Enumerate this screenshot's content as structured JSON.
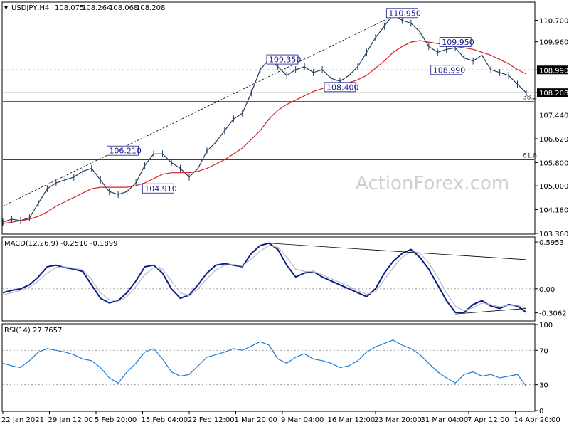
{
  "watermark": "ActionForex.com",
  "chart_data": [
    {
      "type": "line",
      "panel": "price",
      "title": "USDJPY,H4",
      "ohlc": {
        "open": "108.075",
        "high": "108.264",
        "low": "108.068",
        "close": "108.208"
      },
      "ylim": [
        103.36,
        111.3
      ],
      "y_ticks": [
        "110.700",
        "109.960",
        "108.990",
        "108.208",
        "107.440",
        "106.620",
        "105.800",
        "105.000",
        "104.180",
        "103.360"
      ],
      "x_ticks": [
        "22 Jan 2021",
        "29 Jan 12:00",
        "5 Feb 20:00",
        "15 Feb 04:00",
        "22 Feb 12:00",
        "1 Mar 20:00",
        "9 Mar 04:00",
        "16 Mar 12:00",
        "23 Mar 20:00",
        "31 Mar 04:00",
        "7 Apr 12:00",
        "14 Apr 20:00"
      ],
      "x": [
        0,
        2,
        4,
        6,
        8,
        10,
        12,
        14,
        16,
        18,
        20,
        22,
        24,
        26,
        28,
        30,
        32,
        34,
        36,
        38,
        40,
        42,
        44,
        46,
        48,
        50,
        52,
        54,
        56,
        58,
        60,
        62,
        64,
        66,
        68,
        70,
        72,
        74,
        76,
        78,
        80,
        82,
        84,
        86,
        88,
        90,
        92,
        94,
        96,
        98,
        100,
        102,
        104,
        106,
        108,
        110,
        112,
        114,
        116,
        118
      ],
      "series": [
        {
          "color": "#1f3b5a",
          "values": [
            103.75,
            103.85,
            103.8,
            103.9,
            104.4,
            104.9,
            105.1,
            105.2,
            105.3,
            105.5,
            105.6,
            105.2,
            104.8,
            104.7,
            104.8,
            105.1,
            105.7,
            106.1,
            106.1,
            105.8,
            105.6,
            105.3,
            105.6,
            106.2,
            106.5,
            106.9,
            107.3,
            107.5,
            108.2,
            109.0,
            109.35,
            109.1,
            108.8,
            109.0,
            109.1,
            108.9,
            109.0,
            108.7,
            108.6,
            108.8,
            109.1,
            109.6,
            110.1,
            110.5,
            110.9,
            110.7,
            110.6,
            110.3,
            109.8,
            109.6,
            109.7,
            109.75,
            109.4,
            109.3,
            109.5,
            109.0,
            108.9,
            108.8,
            108.5,
            108.2
          ]
        },
        {
          "color": "#d42020",
          "values": [
            103.7,
            103.75,
            103.8,
            103.85,
            103.95,
            104.1,
            104.3,
            104.45,
            104.6,
            104.75,
            104.9,
            104.95,
            104.95,
            104.95,
            104.95,
            105.0,
            105.1,
            105.25,
            105.4,
            105.45,
            105.45,
            105.45,
            105.5,
            105.6,
            105.75,
            105.9,
            106.1,
            106.3,
            106.6,
            106.9,
            107.3,
            107.6,
            107.8,
            107.95,
            108.1,
            108.25,
            108.35,
            108.45,
            108.5,
            108.55,
            108.65,
            108.8,
            109.05,
            109.3,
            109.6,
            109.8,
            109.95,
            110.0,
            109.95,
            109.9,
            109.85,
            109.8,
            109.75,
            109.7,
            109.6,
            109.5,
            109.35,
            109.2,
            109.0,
            108.85
          ]
        }
      ],
      "hlines": [
        108.99,
        108.208,
        107.9,
        105.9
      ],
      "fib_labels": [
        "38.2",
        "61.8"
      ],
      "price_labels": [
        "108.990",
        "108.208"
      ],
      "annotations": [
        {
          "label": "110.950",
          "x": 90,
          "y": 110.95
        },
        {
          "label": "109.350",
          "x": 63,
          "y": 109.35
        },
        {
          "label": "109.950",
          "x": 102,
          "y": 109.95
        },
        {
          "label": "108.990",
          "x": 100,
          "y": 108.99
        },
        {
          "label": "108.400",
          "x": 76,
          "y": 108.4
        },
        {
          "label": "106.210",
          "x": 27,
          "y": 106.21
        },
        {
          "label": "104.910",
          "x": 35,
          "y": 104.91
        }
      ]
    },
    {
      "type": "line",
      "panel": "macd",
      "title": "MACD(12,26,9) -0.2510 -0.1899",
      "ylim": [
        -0.4,
        0.65
      ],
      "y_ticks": [
        "0.5953",
        "0.00",
        "-0.3062"
      ],
      "x": [
        0,
        2,
        4,
        6,
        8,
        10,
        12,
        14,
        16,
        18,
        20,
        22,
        24,
        26,
        28,
        30,
        32,
        34,
        36,
        38,
        40,
        42,
        44,
        46,
        48,
        50,
        52,
        54,
        56,
        58,
        60,
        62,
        64,
        66,
        68,
        70,
        72,
        74,
        76,
        78,
        80,
        82,
        84,
        86,
        88,
        90,
        92,
        94,
        96,
        98,
        100,
        102,
        104,
        106,
        108,
        110,
        112,
        114,
        116,
        118
      ],
      "series": [
        {
          "color": "#0b1f8a",
          "values": [
            -0.05,
            -0.02,
            0.0,
            0.05,
            0.15,
            0.28,
            0.3,
            0.27,
            0.25,
            0.22,
            0.05,
            -0.12,
            -0.18,
            -0.15,
            -0.05,
            0.1,
            0.28,
            0.3,
            0.2,
            0.0,
            -0.12,
            -0.08,
            0.05,
            0.2,
            0.3,
            0.32,
            0.3,
            0.28,
            0.45,
            0.55,
            0.58,
            0.5,
            0.3,
            0.15,
            0.2,
            0.22,
            0.15,
            0.1,
            0.05,
            0.0,
            -0.05,
            -0.1,
            0.0,
            0.2,
            0.35,
            0.45,
            0.5,
            0.4,
            0.25,
            0.05,
            -0.15,
            -0.3,
            -0.3,
            -0.2,
            -0.15,
            -0.22,
            -0.25,
            -0.2,
            -0.22,
            -0.3
          ]
        },
        {
          "color": "#b8b8b8",
          "values": [
            -0.08,
            -0.05,
            -0.02,
            0.02,
            0.1,
            0.2,
            0.27,
            0.28,
            0.26,
            0.24,
            0.12,
            -0.05,
            -0.14,
            -0.16,
            -0.1,
            0.03,
            0.18,
            0.27,
            0.25,
            0.1,
            -0.05,
            -0.09,
            0.0,
            0.13,
            0.24,
            0.3,
            0.31,
            0.29,
            0.38,
            0.48,
            0.55,
            0.53,
            0.4,
            0.25,
            0.22,
            0.22,
            0.18,
            0.13,
            0.08,
            0.03,
            -0.02,
            -0.07,
            -0.04,
            0.12,
            0.27,
            0.4,
            0.47,
            0.45,
            0.33,
            0.15,
            -0.05,
            -0.22,
            -0.28,
            -0.24,
            -0.18,
            -0.2,
            -0.23,
            -0.21,
            -0.21,
            -0.25
          ]
        }
      ]
    },
    {
      "type": "line",
      "panel": "rsi",
      "title": "RSI(14) 27.7657",
      "ylim": [
        0,
        100
      ],
      "y_ticks": [
        "100",
        "70",
        "30",
        "0"
      ],
      "x": [
        0,
        2,
        4,
        6,
        8,
        10,
        12,
        14,
        16,
        18,
        20,
        22,
        24,
        26,
        28,
        30,
        32,
        34,
        36,
        38,
        40,
        42,
        44,
        46,
        48,
        50,
        52,
        54,
        56,
        58,
        60,
        62,
        64,
        66,
        68,
        70,
        72,
        74,
        76,
        78,
        80,
        82,
        84,
        86,
        88,
        90,
        92,
        94,
        96,
        98,
        100,
        102,
        104,
        106,
        108,
        110,
        112,
        114,
        116,
        118
      ],
      "series": [
        {
          "color": "#1e7bd6",
          "values": [
            55,
            52,
            50,
            58,
            68,
            72,
            70,
            68,
            65,
            60,
            58,
            50,
            38,
            32,
            45,
            55,
            68,
            72,
            60,
            45,
            40,
            42,
            52,
            62,
            65,
            68,
            72,
            70,
            75,
            80,
            76,
            60,
            55,
            62,
            66,
            60,
            58,
            55,
            50,
            52,
            58,
            68,
            74,
            78,
            82,
            76,
            72,
            65,
            55,
            45,
            38,
            32,
            42,
            45,
            40,
            42,
            38,
            40,
            42,
            28
          ]
        }
      ]
    }
  ]
}
